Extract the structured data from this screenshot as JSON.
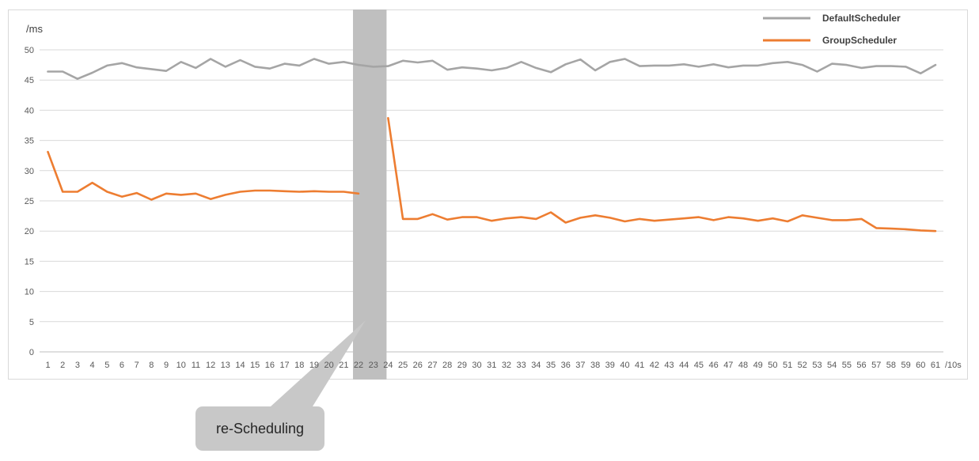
{
  "chart_data": {
    "type": "line",
    "ylabel": "/ms",
    "xlabel": "/10s",
    "ylim": [
      0,
      50
    ],
    "y_ticks": [
      0,
      5,
      10,
      15,
      20,
      25,
      30,
      35,
      40,
      45,
      50
    ],
    "x": [
      1,
      2,
      3,
      4,
      5,
      6,
      7,
      8,
      9,
      10,
      11,
      12,
      13,
      14,
      15,
      16,
      17,
      18,
      19,
      20,
      21,
      22,
      23,
      24,
      25,
      26,
      27,
      28,
      29,
      30,
      31,
      32,
      33,
      34,
      35,
      36,
      37,
      38,
      39,
      40,
      41,
      42,
      43,
      44,
      45,
      46,
      47,
      48,
      49,
      50,
      51,
      52,
      53,
      54,
      55,
      56,
      57,
      58,
      59,
      60,
      61
    ],
    "grid": "horizontal",
    "legend_position": "top-right",
    "series": [
      {
        "name": "DefaultScheduler",
        "color": "#a5a5a5",
        "values": [
          46.4,
          46.4,
          45.2,
          46.2,
          47.4,
          47.8,
          47.1,
          46.8,
          46.5,
          48.0,
          47.0,
          48.5,
          47.2,
          48.3,
          47.2,
          46.9,
          47.7,
          47.4,
          48.5,
          47.7,
          48.0,
          47.5,
          47.2,
          47.3,
          48.2,
          47.9,
          48.2,
          46.7,
          47.1,
          46.9,
          46.6,
          47.0,
          48.0,
          47.0,
          46.3,
          47.6,
          48.4,
          46.6,
          48.0,
          48.5,
          47.3,
          47.4,
          47.4,
          47.6,
          47.2,
          47.6,
          47.1,
          47.4,
          47.4,
          47.8,
          48.0,
          47.5,
          46.4,
          47.7,
          47.5,
          47.0,
          47.3,
          47.3,
          47.2,
          46.1,
          47.5
        ]
      },
      {
        "name": "GroupScheduler",
        "color": "#ed7d31",
        "values": [
          33.1,
          26.5,
          26.5,
          28.0,
          26.5,
          25.7,
          26.3,
          25.2,
          26.2,
          26.0,
          26.2,
          25.3,
          26.0,
          26.5,
          26.7,
          26.7,
          26.6,
          26.5,
          26.6,
          26.5,
          26.5,
          26.2,
          null,
          38.7,
          22.0,
          22.0,
          22.8,
          21.9,
          22.3,
          22.3,
          21.7,
          22.1,
          22.3,
          22.0,
          23.1,
          21.4,
          22.2,
          22.6,
          22.2,
          21.6,
          22.0,
          21.7,
          21.9,
          22.1,
          22.3,
          21.8,
          22.3,
          22.1,
          21.7,
          22.1,
          21.6,
          22.6,
          22.2,
          21.8,
          21.8,
          22.0,
          20.5,
          20.4,
          20.3,
          20.1,
          20.0
        ]
      }
    ],
    "highlight_band": {
      "from_x": 22,
      "to_x": 24,
      "color": "#bfbfbf"
    },
    "annotation": {
      "text": "re-Scheduling"
    }
  }
}
